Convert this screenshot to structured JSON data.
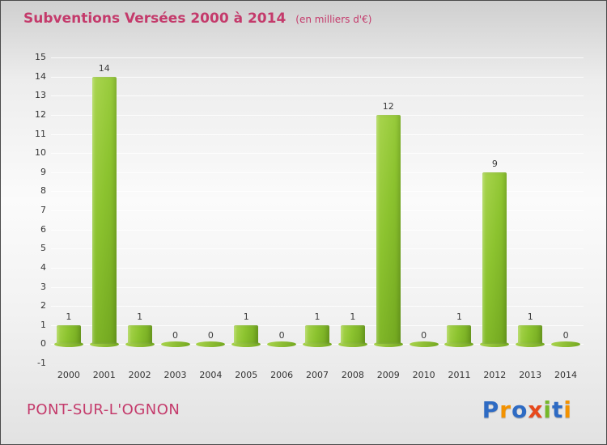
{
  "title": "Subventions Versées 2000 à 2014",
  "subtitle": "(en milliers d'€)",
  "footer": {
    "place": "PONT-SUR-L'OGNON"
  },
  "colors": {
    "accent_pink": "#c43a6b",
    "bar_green_light": "#abd650",
    "bar_green_dark": "#6fa41e",
    "axis_text": "#333333"
  },
  "logo": {
    "name": "Proxiti",
    "letters": [
      {
        "ch": "P",
        "color": "#2e6bc4"
      },
      {
        "ch": "r",
        "color": "#f39200"
      },
      {
        "ch": "o",
        "color": "#2e6bc4"
      },
      {
        "ch": "x",
        "color": "#e7491c"
      },
      {
        "ch": "i",
        "color": "#76b82a"
      },
      {
        "ch": "t",
        "color": "#2e6bc4"
      },
      {
        "ch": "i",
        "color": "#f39200"
      }
    ]
  },
  "chart_data": {
    "type": "bar",
    "title": "Subventions Versées 2000 à 2014",
    "subtitle": "(en milliers d'€)",
    "xlabel": "",
    "ylabel": "",
    "categories": [
      "2000",
      "2001",
      "2002",
      "2003",
      "2004",
      "2005",
      "2006",
      "2007",
      "2008",
      "2009",
      "2010",
      "2011",
      "2012",
      "2013",
      "2014"
    ],
    "values": [
      1,
      14,
      1,
      0,
      0,
      1,
      0,
      1,
      1,
      12,
      0,
      1,
      9,
      1,
      0
    ],
    "ylim": [
      -1,
      15
    ],
    "ytick_step": 1,
    "grid": true,
    "legend": "none"
  }
}
